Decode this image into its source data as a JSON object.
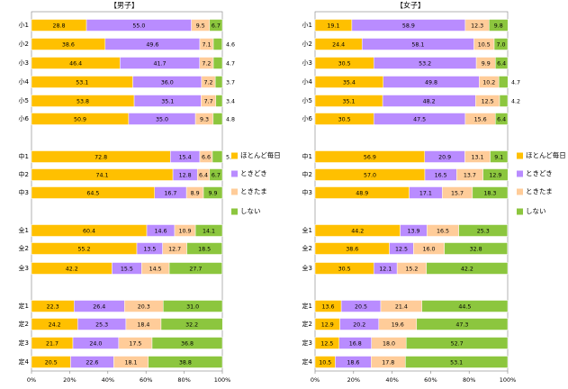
{
  "colors": {
    "ほとんど毎日": "#FFC000",
    "ときどき": "#B98CFF",
    "ときたま": "#FFCC99",
    "しない": "#8CC63E"
  },
  "legend": {
    "placement": "right",
    "items": [
      "ほとんど毎日",
      "ときどき",
      "ときたま",
      "しない"
    ]
  },
  "chart_data": [
    {
      "type": "bar",
      "orientation": "horizontal",
      "stacked": true,
      "title": "【男子】",
      "x_ticks": [
        "0%",
        "20%",
        "40%",
        "60%",
        "80%",
        "100%"
      ],
      "xlim": [
        0,
        100
      ],
      "grid": false,
      "categories": [
        "小1",
        "小2",
        "小3",
        "小4",
        "小5",
        "小6",
        "中1",
        "中2",
        "中3",
        "全1",
        "全2",
        "全3",
        "定1",
        "定2",
        "定3",
        "定4"
      ],
      "series": [
        {
          "name": "ほとんど毎日",
          "values": [
            28.8,
            38.6,
            46.4,
            53.1,
            53.8,
            50.9,
            72.8,
            74.1,
            64.5,
            60.4,
            55.2,
            42.2,
            22.3,
            24.2,
            21.7,
            20.5
          ]
        },
        {
          "name": "ときどき",
          "values": [
            55.0,
            49.6,
            41.7,
            36.0,
            35.1,
            35.0,
            15.4,
            12.8,
            16.7,
            14.6,
            13.5,
            15.5,
            26.4,
            25.3,
            24.0,
            22.6
          ]
        },
        {
          "name": "ときたま",
          "values": [
            9.5,
            7.1,
            7.2,
            7.2,
            7.7,
            9.3,
            6.6,
            6.4,
            8.9,
            10.9,
            12.7,
            14.5,
            20.3,
            18.4,
            17.5,
            18.1
          ]
        },
        {
          "name": "しない",
          "values": [
            6.7,
            4.6,
            4.7,
            3.7,
            3.4,
            4.8,
            5.2,
            6.7,
            9.9,
            14.1,
            18.5,
            27.7,
            31.0,
            32.2,
            36.8,
            38.8
          ]
        }
      ]
    },
    {
      "type": "bar",
      "orientation": "horizontal",
      "stacked": true,
      "title": "【女子】",
      "x_ticks": [
        "0%",
        "20%",
        "40%",
        "60%",
        "80%",
        "100%"
      ],
      "xlim": [
        0,
        100
      ],
      "grid": false,
      "categories": [
        "小1",
        "小2",
        "小3",
        "小4",
        "小5",
        "小6",
        "中1",
        "中2",
        "中3",
        "全1",
        "全2",
        "全3",
        "定1",
        "定2",
        "定3",
        "定4"
      ],
      "series": [
        {
          "name": "ほとんど毎日",
          "values": [
            19.1,
            24.4,
            30.5,
            35.4,
            35.1,
            30.5,
            56.9,
            57.0,
            48.9,
            44.2,
            38.6,
            30.5,
            13.6,
            12.9,
            12.5,
            10.5
          ]
        },
        {
          "name": "ときどき",
          "values": [
            58.9,
            58.1,
            53.2,
            49.8,
            48.2,
            47.5,
            20.9,
            16.5,
            17.1,
            13.9,
            12.5,
            12.1,
            20.5,
            20.2,
            16.8,
            18.6
          ]
        },
        {
          "name": "ときたま",
          "values": [
            12.3,
            10.5,
            9.9,
            10.2,
            12.5,
            15.6,
            13.1,
            13.7,
            15.7,
            16.5,
            16.0,
            15.2,
            21.4,
            19.6,
            18.0,
            17.8
          ]
        },
        {
          "name": "しない",
          "values": [
            9.8,
            7.0,
            6.4,
            4.7,
            4.2,
            6.4,
            9.1,
            12.9,
            18.3,
            25.3,
            32.8,
            42.2,
            44.5,
            47.3,
            52.7,
            53.1
          ]
        }
      ]
    }
  ]
}
